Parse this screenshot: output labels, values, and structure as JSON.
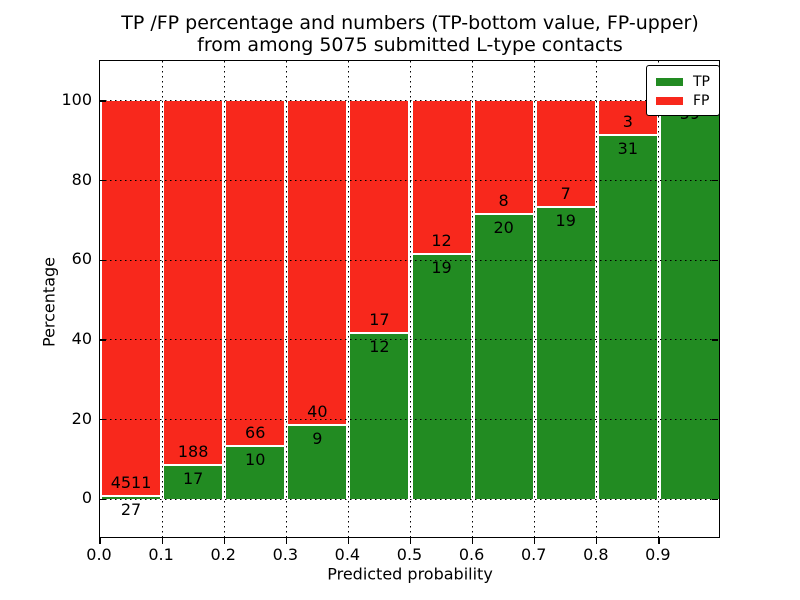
{
  "title": {
    "line1": "TP /FP percentage and numbers (TP-bottom value, FP-upper)",
    "line2": "from among 5075 submitted L-type contacts"
  },
  "axes": {
    "ylabel": "Percentage",
    "xlabel": "Predicted probability",
    "ytick_labels": [
      "0",
      "20",
      "40",
      "60",
      "80",
      "100"
    ],
    "xtick_labels": [
      "0.0",
      "0.1",
      "0.2",
      "0.3",
      "0.4",
      "0.5",
      "0.6",
      "0.7",
      "0.8",
      "0.9"
    ]
  },
  "legend": {
    "items": [
      {
        "label": "TP",
        "color": "#228b22"
      },
      {
        "label": "FP",
        "color": "#f8281c"
      }
    ],
    "position": "upper right"
  },
  "colors": {
    "tp_green": "#228b22",
    "fp_red": "#f8281c",
    "background": "#ffffff",
    "text": "#000000"
  },
  "chart_data": {
    "type": "bar",
    "stacked": true,
    "normalized": "percent (each bin sums to 100)",
    "title": "TP /FP percentage and numbers (TP-bottom value, FP-upper) from among 5075 submitted L-type contacts",
    "xlabel": "Predicted probability",
    "ylabel": "Percentage",
    "xlim": [
      0.0,
      1.0
    ],
    "ylim": [
      -10,
      110
    ],
    "yticks": [
      0,
      20,
      40,
      60,
      80,
      100
    ],
    "xticks": [
      0.0,
      0.1,
      0.2,
      0.3,
      0.4,
      0.5,
      0.6,
      0.7,
      0.8,
      0.9
    ],
    "grid": "dotted black, vertical lines under bars, horizontal lines over bars",
    "bin_edges": [
      0.0,
      0.1,
      0.2,
      0.3,
      0.4,
      0.5,
      0.6,
      0.7,
      0.8,
      0.9,
      1.0
    ],
    "series": [
      {
        "name": "TP",
        "color": "#228b22",
        "counts": [
          27,
          17,
          10,
          9,
          12,
          19,
          20,
          19,
          31,
          59
        ]
      },
      {
        "name": "FP",
        "color": "#f8281c",
        "counts": [
          4511,
          188,
          66,
          40,
          17,
          12,
          8,
          7,
          3,
          0
        ]
      }
    ],
    "tp_percent": [
      0.6,
      8.3,
      13.2,
      18.4,
      41.4,
      61.3,
      71.4,
      73.1,
      91.2,
      100.0
    ],
    "total_contacts": 5075
  }
}
